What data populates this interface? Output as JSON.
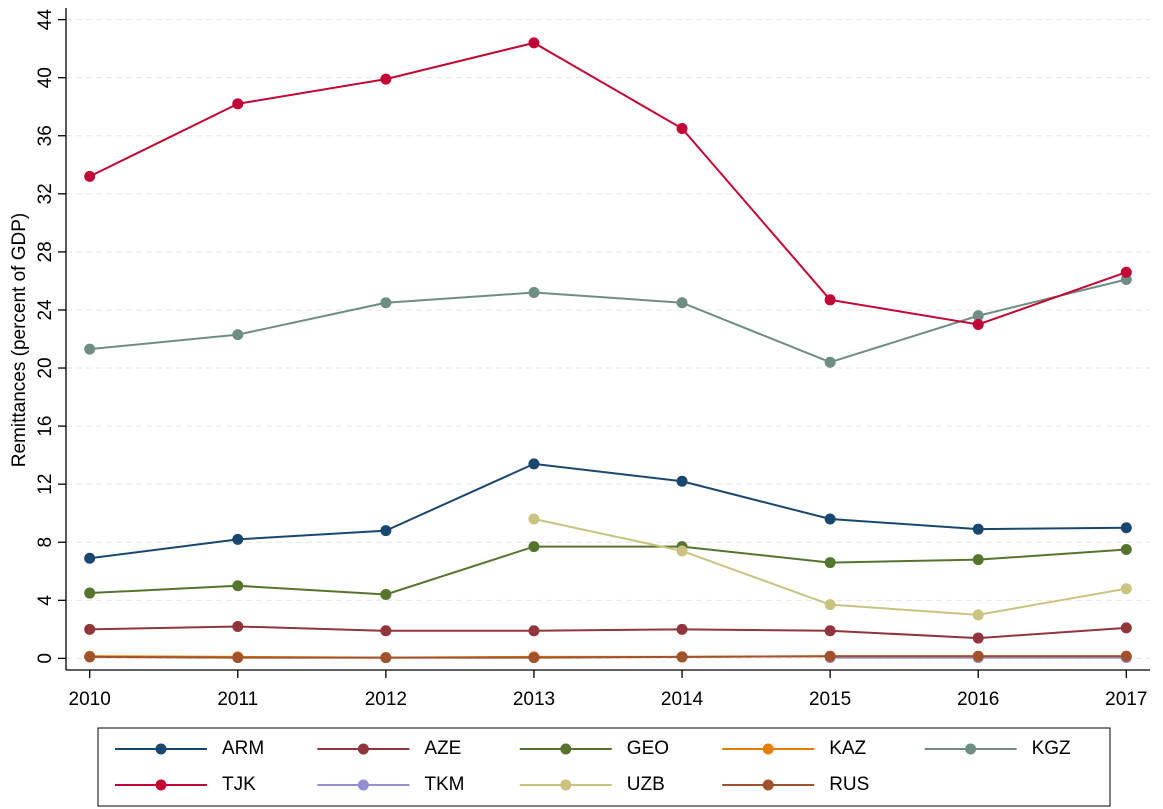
{
  "chart_data": {
    "type": "line",
    "y_label": "Remittances (percent of GDP)",
    "x": [
      2010,
      2011,
      2012,
      2013,
      2014,
      2015,
      2016,
      2017
    ],
    "xlim": [
      2009.84,
      2017.16
    ],
    "xticks": [
      2010,
      2011,
      2012,
      2013,
      2014,
      2015,
      2016,
      2017
    ],
    "ylim": [
      -0.8,
      44.8
    ],
    "yticks": [
      0,
      4,
      8,
      12,
      16,
      20,
      24,
      28,
      32,
      36,
      40,
      44
    ],
    "grid": true,
    "legend": "bottom",
    "series": [
      {
        "name": "ARM",
        "color": "#1a476f",
        "values": [
          6.9,
          8.2,
          8.8,
          13.4,
          12.2,
          9.6,
          8.9,
          9.0
        ]
      },
      {
        "name": "AZE",
        "color": "#90353b",
        "values": [
          2.0,
          2.2,
          1.9,
          1.9,
          2.0,
          1.9,
          1.4,
          2.1
        ]
      },
      {
        "name": "GEO",
        "color": "#55752f",
        "values": [
          4.5,
          5.0,
          4.4,
          7.7,
          7.7,
          6.6,
          6.8,
          7.5
        ]
      },
      {
        "name": "KAZ",
        "color": "#e37e00",
        "values": [
          0.15,
          0.1,
          0.05,
          0.1,
          0.1,
          0.15,
          0.15,
          0.15
        ]
      },
      {
        "name": "KGZ",
        "color": "#6e8e84",
        "values": [
          21.3,
          22.3,
          24.5,
          25.2,
          24.5,
          20.4,
          23.6,
          26.1
        ]
      },
      {
        "name": "TJK",
        "color": "#c10534",
        "values": [
          33.2,
          38.2,
          39.9,
          42.4,
          36.5,
          24.7,
          23.0,
          26.6
        ]
      },
      {
        "name": "TKM",
        "color": "#938dd2",
        "values": [
          null,
          null,
          null,
          null,
          null,
          0.05,
          0.05,
          0.05
        ]
      },
      {
        "name": "UZB",
        "color": "#cac27e",
        "values": [
          null,
          null,
          null,
          9.6,
          7.4,
          3.7,
          3.0,
          4.8
        ]
      },
      {
        "name": "RUS",
        "color": "#a0522d",
        "values": [
          0.1,
          0.05,
          0.05,
          0.05,
          0.1,
          0.15,
          0.15,
          0.15
        ]
      }
    ]
  }
}
